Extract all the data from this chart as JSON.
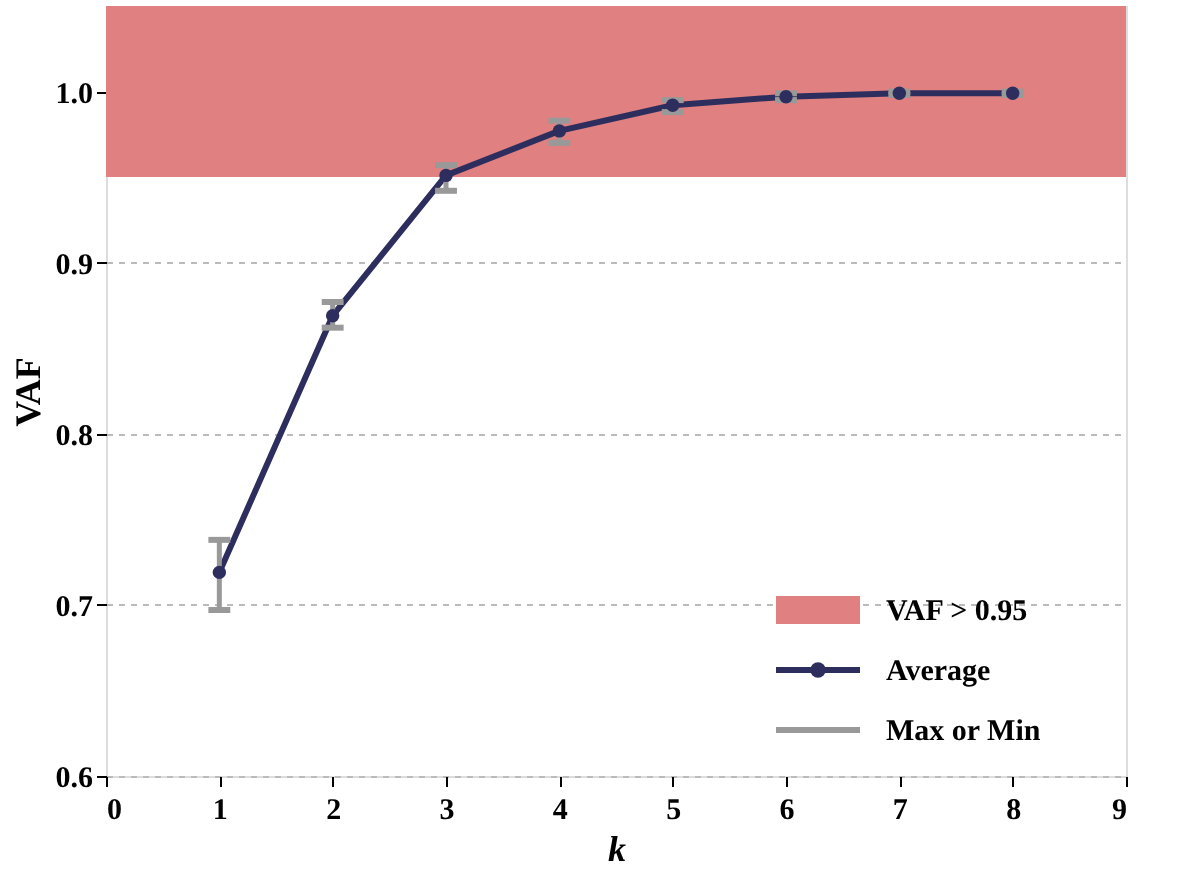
{
  "chart_data": {
    "type": "line",
    "xlabel": "k",
    "ylabel": "VAF",
    "x": [
      1,
      2,
      3,
      4,
      5,
      6,
      7,
      8
    ],
    "series": [
      {
        "name": "Average",
        "color": "#2e2e5e",
        "values": [
          0.719,
          0.869,
          0.951,
          0.977,
          0.992,
          0.997,
          0.999,
          0.999
        ],
        "errors": [
          [
            0.697,
            0.738
          ],
          [
            0.862,
            0.877
          ],
          [
            0.942,
            0.957
          ],
          [
            0.97,
            0.983
          ],
          [
            0.988,
            0.995
          ],
          [
            0.995,
            0.999
          ],
          [
            0.998,
            1.0
          ],
          [
            0.998,
            1.0
          ]
        ]
      }
    ],
    "bands": [
      {
        "axis": "y",
        "from": 0.95,
        "to": 1.05,
        "label": "VAF > 0.95",
        "color": "#e08080"
      }
    ],
    "annotations": [
      "Max or Min"
    ],
    "xlim": [
      0,
      9
    ],
    "xticks": [
      0,
      1,
      2,
      3,
      4,
      5,
      6,
      7,
      8,
      9
    ],
    "ylim": [
      0.6,
      1.05
    ],
    "yticks": [
      0.6,
      0.7,
      0.8,
      0.9,
      {
        "value": 1.0,
        "label": "1.0"
      }
    ],
    "grid": "y",
    "legend": "bottom right",
    "marker": "circle",
    "line_style": "solid"
  }
}
